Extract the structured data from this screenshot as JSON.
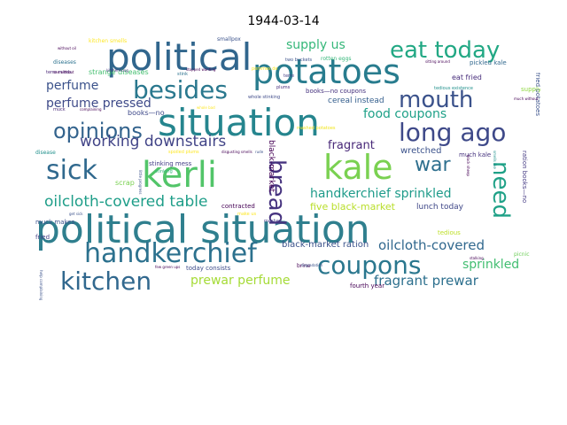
{
  "title": "1944-03-14",
  "words": [
    {
      "text": "political situation",
      "color": "#2f7f8e"
    },
    {
      "text": "situation",
      "color": "#25858e"
    },
    {
      "text": "political",
      "color": "#31668d"
    },
    {
      "text": "potatoes",
      "color": "#287c8e"
    },
    {
      "text": "handkerchief",
      "color": "#2c718e"
    },
    {
      "text": "kerli",
      "color": "#52c569"
    },
    {
      "text": "kale",
      "color": "#7ad151"
    },
    {
      "text": "coupons",
      "color": "#2a778e"
    },
    {
      "text": "long ago",
      "color": "#3e4989"
    },
    {
      "text": "kitchen",
      "color": "#31688e"
    },
    {
      "text": "besides",
      "color": "#2a788e"
    },
    {
      "text": "eat today",
      "color": "#22a884"
    },
    {
      "text": "mouth",
      "color": "#3b528b"
    },
    {
      "text": "opinions",
      "color": "#33638d"
    },
    {
      "text": "sick",
      "color": "#30698e"
    },
    {
      "text": "need",
      "color": "#1fa187"
    },
    {
      "text": "bread",
      "color": "#46337f"
    },
    {
      "text": "war",
      "color": "#2e6f8e"
    },
    {
      "text": "oilcloth-covered table",
      "color": "#1f9e89"
    },
    {
      "text": "working downstairs",
      "color": "#414487"
    },
    {
      "text": "handkerchief sprinkled",
      "color": "#1e9b8a"
    },
    {
      "text": "oilcloth-covered",
      "color": "#31688e"
    },
    {
      "text": "fragrant prewar",
      "color": "#2d708e"
    },
    {
      "text": "perfume pressed",
      "color": "#3e4a89"
    },
    {
      "text": "food coupons",
      "color": "#1fa188"
    },
    {
      "text": "supply us",
      "color": "#35b779"
    },
    {
      "text": "perfume",
      "color": "#3b528b"
    },
    {
      "text": "prewar perfume",
      "color": "#a5db36"
    },
    {
      "text": "sprinkled",
      "color": "#42be71"
    },
    {
      "text": "fragrant",
      "color": "#482878"
    },
    {
      "text": "five black-market",
      "color": "#b8de29"
    },
    {
      "text": "black-market ration",
      "color": "#3b528b"
    },
    {
      "text": "wretched",
      "color": "#3b528b"
    },
    {
      "text": "cereal instead",
      "color": "#355f8d"
    },
    {
      "text": "lunch today",
      "color": "#3f4788"
    },
    {
      "text": "black-market",
      "color": "#440154"
    },
    {
      "text": "books—no",
      "color": "#3e4989"
    },
    {
      "text": "books—no coupons",
      "color": "#46327e"
    },
    {
      "text": "strange diseases",
      "color": "#44bf70"
    },
    {
      "text": "stinking mess",
      "color": "#433e85"
    },
    {
      "text": "today consists",
      "color": "#3e4c8a"
    },
    {
      "text": "fourth year",
      "color": "#440154"
    },
    {
      "text": "half-and-half",
      "color": "#5ec962"
    },
    {
      "text": "fried potatoes",
      "color": "#3b528b"
    },
    {
      "text": "ration books—no",
      "color": "#443a83"
    },
    {
      "text": "eat fried",
      "color": "#472d7b"
    },
    {
      "text": "much kale",
      "color": "#46337f"
    },
    {
      "text": "pickled kale",
      "color": "#31688e"
    },
    {
      "text": "fried",
      "color": "#433e85"
    },
    {
      "text": "scrap",
      "color": "#7ad151"
    },
    {
      "text": "muck makes",
      "color": "#3b528b"
    },
    {
      "text": "contracted",
      "color": "#440154"
    },
    {
      "text": "disease",
      "color": "#21918c"
    },
    {
      "text": "diseases",
      "color": "#2c728e"
    },
    {
      "text": "terre minds",
      "color": "#482475"
    },
    {
      "text": "kitchen smells",
      "color": "#fde725"
    },
    {
      "text": "smallpox",
      "color": "#3b528b"
    },
    {
      "text": "two buckets",
      "color": "#3b528b"
    },
    {
      "text": "rotten eggs",
      "color": "#35b779"
    },
    {
      "text": "terre",
      "color": "#433e85"
    },
    {
      "text": "plums",
      "color": "#472a7a"
    },
    {
      "text": "supply",
      "color": "#90d743"
    },
    {
      "text": "tedious",
      "color": "#bddf26"
    },
    {
      "text": "picnic",
      "color": "#6ece58"
    },
    {
      "text": "brine",
      "color": "#440154"
    },
    {
      "text": "mashed",
      "color": "#443983"
    },
    {
      "text": "make us",
      "color": "#fde725"
    },
    {
      "text": "muck",
      "color": "#482878"
    },
    {
      "text": "stinking",
      "color": "#35b779"
    },
    {
      "text": "whole stinking",
      "color": "#3e4a89"
    },
    {
      "text": "mashed potatoes",
      "color": "#f1e51d"
    },
    {
      "text": "tedious existence",
      "color": "#21918c"
    },
    {
      "text": "pommes de",
      "color": "#fde725"
    },
    {
      "text": "stopped wanting",
      "color": "#440154"
    },
    {
      "text": "kitchen-long",
      "color": "#46337f"
    },
    {
      "text": "entertain",
      "color": "#3b528b"
    },
    {
      "text": "complaining",
      "color": "#440154"
    },
    {
      "text": "stink",
      "color": "#2c728e"
    },
    {
      "text": "without oil",
      "color": "#440154"
    },
    {
      "text": "sitting around",
      "color": "#440154"
    },
    {
      "text": "rude",
      "color": "#3b528b"
    },
    {
      "text": "disgusting smells",
      "color": "#440154"
    },
    {
      "text": "spoiled plums",
      "color": "#fde725"
    },
    {
      "text": "little progress",
      "color": "#3b528b"
    },
    {
      "text": "black sheep",
      "color": "#440154"
    },
    {
      "text": "smells like",
      "color": "#21918c"
    },
    {
      "text": "help complaining",
      "color": "#3b528b"
    },
    {
      "text": "few green ups",
      "color": "#440154"
    },
    {
      "text": "degradation",
      "color": "#3b528b"
    },
    {
      "text": "get sick",
      "color": "#3b528b"
    },
    {
      "text": "whole bad",
      "color": "#fde725"
    },
    {
      "text": "stalking",
      "color": "#440154"
    },
    {
      "text": "much without",
      "color": "#440154"
    },
    {
      "text": "can without",
      "color": "#440154"
    }
  ]
}
